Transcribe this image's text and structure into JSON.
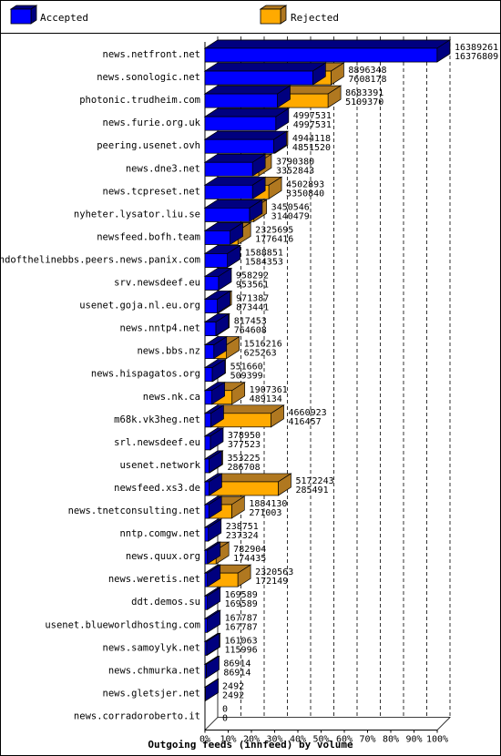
{
  "chart_data": {
    "type": "bar",
    "title": "Outgoing feeds (innfeed) by volume",
    "legend": [
      {
        "name": "Accepted",
        "color": "#0000ff"
      },
      {
        "name": "Rejected",
        "color": "#ffaa00"
      }
    ],
    "x_ticks": [
      "0%",
      "10%",
      "20%",
      "30%",
      "40%",
      "50%",
      "60%",
      "70%",
      "80%",
      "90%",
      "100%"
    ],
    "xlim": [
      0,
      100
    ],
    "grid": true,
    "legend_position": "top",
    "rows": [
      {
        "label": "news.netfront.net",
        "offered": 16389261,
        "accepted": 16376809
      },
      {
        "label": "news.sonologic.net",
        "offered": 8896348,
        "accepted": 7608178
      },
      {
        "label": "photonic.trudheim.com",
        "offered": 8683391,
        "accepted": 5109370
      },
      {
        "label": "news.furie.org.uk",
        "offered": 4997531,
        "accepted": 4997531
      },
      {
        "label": "peering.usenet.ovh",
        "offered": 4944118,
        "accepted": 4851520
      },
      {
        "label": "news.dne3.net",
        "offered": 3790380,
        "accepted": 3352843
      },
      {
        "label": "news.tcpreset.net",
        "offered": 4502893,
        "accepted": 3350840
      },
      {
        "label": "nyheter.lysator.liu.se",
        "offered": 3450546,
        "accepted": 3140479
      },
      {
        "label": "newsfeed.bofh.team",
        "offered": 2325695,
        "accepted": 1776416
      },
      {
        "label": "endofthelinebbs.peers.news.panix.com",
        "offered": 1588851,
        "accepted": 1584353
      },
      {
        "label": "srv.newsdeef.eu",
        "offered": 958292,
        "accepted": 953561
      },
      {
        "label": "usenet.goja.nl.eu.org",
        "offered": 971387,
        "accepted": 873441
      },
      {
        "label": "news.nntp4.net",
        "offered": 817453,
        "accepted": 764608
      },
      {
        "label": "news.bbs.nz",
        "offered": 1516216,
        "accepted": 625263
      },
      {
        "label": "news.hispagatos.org",
        "offered": 551660,
        "accepted": 509399
      },
      {
        "label": "news.nk.ca",
        "offered": 1907361,
        "accepted": 489134
      },
      {
        "label": "m68k.vk3heg.net",
        "offered": 4660923,
        "accepted": 416457
      },
      {
        "label": "srl.newsdeef.eu",
        "offered": 378950,
        "accepted": 377523
      },
      {
        "label": "usenet.network",
        "offered": 353225,
        "accepted": 286708
      },
      {
        "label": "newsfeed.xs3.de",
        "offered": 5172243,
        "accepted": 285491
      },
      {
        "label": "news.tnetconsulting.net",
        "offered": 1884130,
        "accepted": 271003
      },
      {
        "label": "nntp.comgw.net",
        "offered": 238751,
        "accepted": 237324
      },
      {
        "label": "news.quux.org",
        "offered": 782904,
        "accepted": 174435
      },
      {
        "label": "news.weretis.net",
        "offered": 2320563,
        "accepted": 172149
      },
      {
        "label": "ddt.demos.su",
        "offered": 169589,
        "accepted": 169589
      },
      {
        "label": "usenet.blueworldhosting.com",
        "offered": 167787,
        "accepted": 167787
      },
      {
        "label": "news.samoylyk.net",
        "offered": 161063,
        "accepted": 115996
      },
      {
        "label": "news.chmurka.net",
        "offered": 86914,
        "accepted": 86914
      },
      {
        "label": "news.gletsjer.net",
        "offered": 2492,
        "accepted": 2492
      },
      {
        "label": "news.corradoroberto.it",
        "offered": 0,
        "accepted": 0
      }
    ]
  },
  "colors": {
    "accepted": "#0000ff",
    "accepted_dark": "#00007f",
    "rejected": "#ffaa00",
    "rejected_dark": "#b07820",
    "frame": "#000000"
  }
}
